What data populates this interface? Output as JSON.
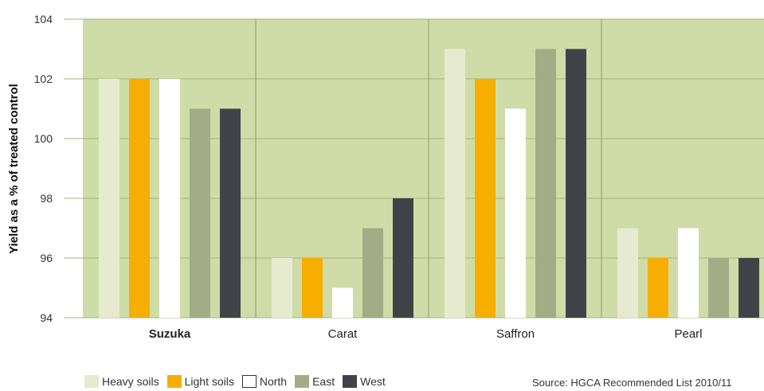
{
  "chart_data": {
    "type": "bar",
    "ylabel": "Yield as a % of treated control",
    "ylim": [
      94,
      104
    ],
    "yticks": [
      94,
      96,
      98,
      100,
      102,
      104
    ],
    "grid": true,
    "legend_position": "bottom-left",
    "plot_background": "#d0dca8",
    "categories": [
      "Suzuka",
      "Carat",
      "Saffron",
      "Pearl"
    ],
    "bold_categories": [
      "Suzuka"
    ],
    "series": [
      {
        "name": "Heavy soils",
        "color": "#e6eacf",
        "values": [
          102,
          96,
          103,
          97
        ]
      },
      {
        "name": "Light soils",
        "color": "#f6ae00",
        "values": [
          102,
          96,
          102,
          96
        ]
      },
      {
        "name": "North",
        "color": "#ffffff",
        "values": [
          102,
          95,
          101,
          97
        ]
      },
      {
        "name": "East",
        "color": "#a2ad85",
        "values": [
          101,
          97,
          103,
          96
        ]
      },
      {
        "name": "West",
        "color": "#414348",
        "values": [
          101,
          98,
          103,
          96
        ]
      }
    ],
    "source": "Source: HGCA Recommended List 2010/11"
  }
}
